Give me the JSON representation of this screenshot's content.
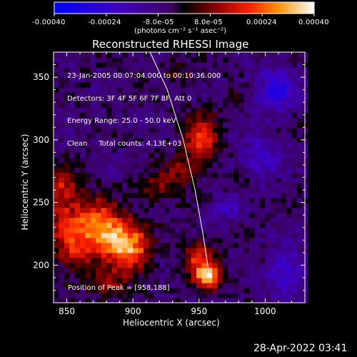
{
  "chart_data": {
    "type": "heatmap",
    "title": "Reconstructed RHESSI Image",
    "xlabel": "Heliocentric X (arcsec)",
    "ylabel": "Heliocentric Y (arcsec)",
    "xlim": [
      840,
      1030
    ],
    "ylim": [
      170,
      370
    ],
    "xticks": [
      850,
      900,
      950,
      1000
    ],
    "yticks": [
      200,
      250,
      300,
      350
    ],
    "colorbar": {
      "ticks": [
        "-0.00040",
        "-0.00024",
        "-8.0e-05",
        "8.0e-05",
        "0.00024",
        "0.00040"
      ],
      "units": "(photons cm⁻² s⁻¹ asec⁻²)",
      "range": [
        -0.0004,
        0.0004
      ]
    },
    "annotation_lines": [
      "23-Jan-2005 00:07:04.000 to 00:10:36.000",
      "Detectors: 3F 4F 5F 6F 7F 8F, Att 0",
      "Energy Range: 25.0 - 50.0 keV",
      "Clean     Total counts: 4.13E+03"
    ],
    "peak_label": "Position of Peak = [958,188]",
    "peak": [
      958,
      188
    ],
    "limb_curve": [
      [
        913,
        370
      ],
      [
        926,
        340
      ],
      [
        938,
        300
      ],
      [
        947,
        260
      ],
      [
        953,
        225
      ],
      [
        958,
        190
      ]
    ],
    "hot_regions": [
      {
        "x": 957,
        "y": 191,
        "sx": 7,
        "sy": 7,
        "amp": 0.0004
      },
      {
        "x": 950,
        "y": 207,
        "sx": 8,
        "sy": 9,
        "amp": 0.00022
      },
      {
        "x": 885,
        "y": 222,
        "sx": 14,
        "sy": 13,
        "amp": 0.00032
      },
      {
        "x": 900,
        "y": 210,
        "sx": 10,
        "sy": 12,
        "amp": 0.00022
      },
      {
        "x": 868,
        "y": 238,
        "sx": 14,
        "sy": 12,
        "amp": 0.00022
      },
      {
        "x": 855,
        "y": 212,
        "sx": 10,
        "sy": 14,
        "amp": 0.00018
      },
      {
        "x": 848,
        "y": 265,
        "sx": 10,
        "sy": 9,
        "amp": 0.00014
      },
      {
        "x": 845,
        "y": 245,
        "sx": 7,
        "sy": 18,
        "amp": 0.00013
      },
      {
        "x": 952,
        "y": 300,
        "sx": 9,
        "sy": 14,
        "amp": 0.00027
      },
      {
        "x": 918,
        "y": 262,
        "sx": 9,
        "sy": 8,
        "amp": 0.00015
      },
      {
        "x": 935,
        "y": 275,
        "sx": 8,
        "sy": 8,
        "amp": 0.00014
      },
      {
        "x": 880,
        "y": 185,
        "sx": 10,
        "sy": 8,
        "amp": 0.00014
      },
      {
        "x": 985,
        "y": 268,
        "sx": 6,
        "sy": 6,
        "amp": 0.0001
      },
      {
        "x": 1000,
        "y": 200,
        "sx": 6,
        "sy": 6,
        "amp": 8e-05
      },
      {
        "x": 935,
        "y": 355,
        "sx": 7,
        "sy": 7,
        "amp": 9e-05
      },
      {
        "x": 975,
        "y": 330,
        "sx": 6,
        "sy": 6,
        "amp": 6e-05
      }
    ],
    "cold_regions": [
      {
        "x": 1008,
        "y": 340,
        "sx": 10,
        "sy": 12,
        "amp": -0.00022
      },
      {
        "x": 1015,
        "y": 195,
        "sx": 12,
        "sy": 12,
        "amp": -0.00018
      },
      {
        "x": 995,
        "y": 285,
        "sx": 12,
        "sy": 12,
        "amp": -0.00016
      },
      {
        "x": 970,
        "y": 245,
        "sx": 8,
        "sy": 8,
        "amp": -0.00012
      }
    ]
  },
  "footer": {
    "timestamp": "28-Apr-2022 03:41"
  }
}
